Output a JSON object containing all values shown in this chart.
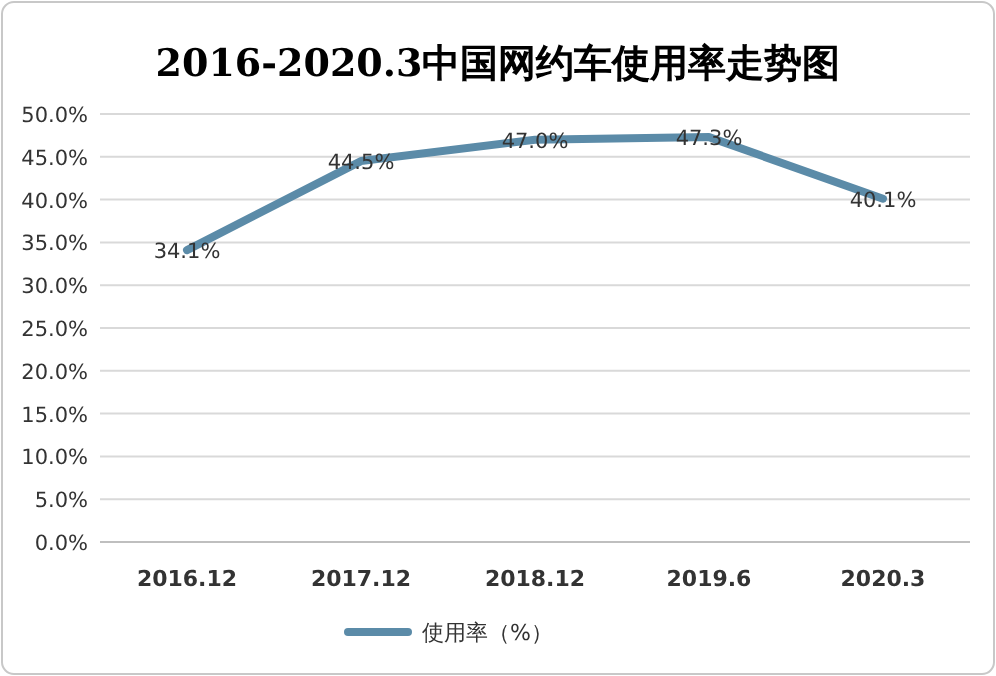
{
  "chart_data": {
    "type": "line",
    "title": "2016-2020.3中国网约车使用率走势图",
    "categories": [
      "2016.12",
      "2017.12",
      "2018.12",
      "2019.6",
      "2020.3"
    ],
    "series": [
      {
        "name": "使用率（%）",
        "color": "#5b8ba8",
        "values": [
          34.1,
          44.5,
          47.0,
          47.3,
          40.1
        ],
        "value_labels": [
          "34.1%",
          "44.5%",
          "47.0%",
          "47.3%",
          "40.1%"
        ]
      }
    ],
    "ylim": [
      0,
      50
    ],
    "yticks": [
      {
        "value": 0,
        "label": "0.0%"
      },
      {
        "value": 5,
        "label": "5.0%"
      },
      {
        "value": 10,
        "label": "10.0%"
      },
      {
        "value": 15,
        "label": "15.0%"
      },
      {
        "value": 20,
        "label": "20.0%"
      },
      {
        "value": 25,
        "label": "25.0%"
      },
      {
        "value": 30,
        "label": "30.0%"
      },
      {
        "value": 35,
        "label": "35.0%"
      },
      {
        "value": 40,
        "label": "40.0%"
      },
      {
        "value": 45,
        "label": "45.0%"
      },
      {
        "value": 50,
        "label": "50.0%"
      }
    ],
    "grid": "y",
    "legend": "bottom",
    "marker": "none",
    "line_style": "solid"
  }
}
